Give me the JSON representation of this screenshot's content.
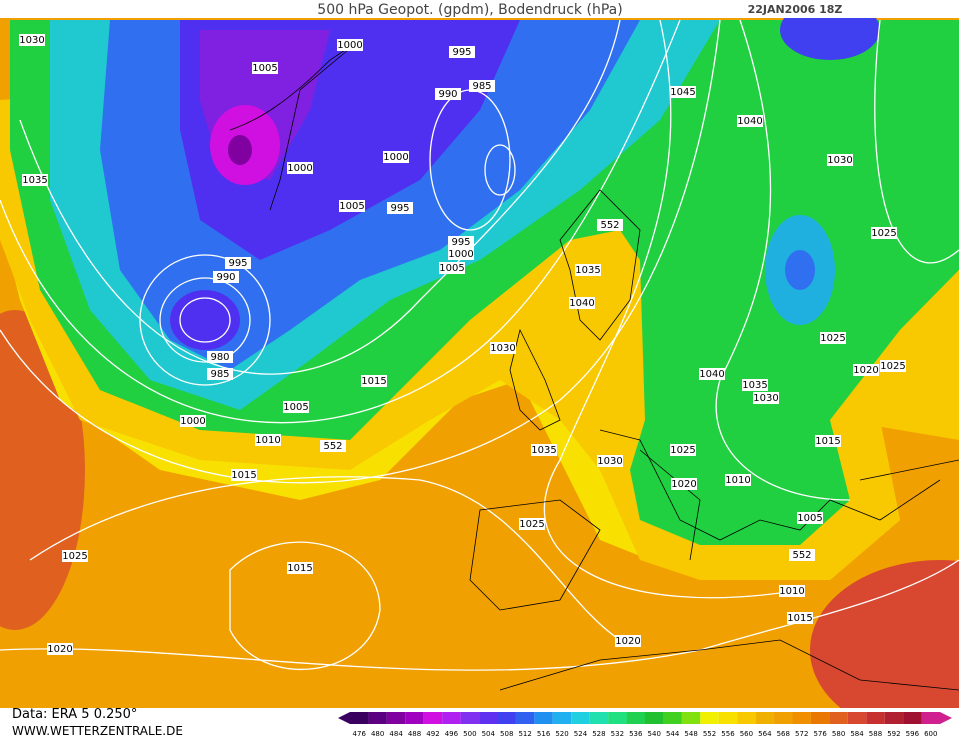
{
  "title": "500 hPa Geopot. (gpdm), Bodendruck (hPa)",
  "date": "22JAN2006 18Z",
  "source": "Data: ERA 5 0.250°",
  "website": "WWW.WETTERZENTRALE.DE",
  "isobar_labels": [
    "1030",
    "1000",
    "995",
    "1005",
    "990",
    "985",
    "1045",
    "1040",
    "1000",
    "1030",
    "1000",
    "1035",
    "1005",
    "995",
    "995",
    "1000",
    "1025",
    "995",
    "1005",
    "990",
    "1035",
    "1040",
    "1025",
    "1030",
    "980",
    "985",
    "1025",
    "1020",
    "1015",
    "1040",
    "1035",
    "1030",
    "1005",
    "1000",
    "1010",
    "1015",
    "1035",
    "1025",
    "1030",
    "1015",
    "1020",
    "1010",
    "1005",
    "1025",
    "1025",
    "1015",
    "1010",
    "1015",
    "1020",
    "1020",
    "552",
    "552",
    "552"
  ],
  "scale": {
    "values": [
      476,
      480,
      484,
      488,
      492,
      496,
      500,
      504,
      508,
      512,
      516,
      520,
      524,
      528,
      532,
      536,
      540,
      544,
      548,
      552,
      556,
      560,
      564,
      568,
      572,
      576,
      580,
      584,
      588,
      592,
      596,
      600
    ],
    "colors": [
      "#3a0060",
      "#5a0080",
      "#8000a0",
      "#a000c0",
      "#d010e0",
      "#b020f0",
      "#8030f0",
      "#6030f0",
      "#4040f0",
      "#3060f0",
      "#2090f0",
      "#20b0f0",
      "#20d0e0",
      "#20e0b0",
      "#20e080",
      "#20d050",
      "#20c030",
      "#40d020",
      "#80e010",
      "#f0f000",
      "#f8e000",
      "#f8c800",
      "#f0b000",
      "#f0a000",
      "#f09000",
      "#e87800",
      "#e06020",
      "#d84830",
      "#c83030",
      "#b02030",
      "#a01030",
      "#d02090"
    ]
  }
}
